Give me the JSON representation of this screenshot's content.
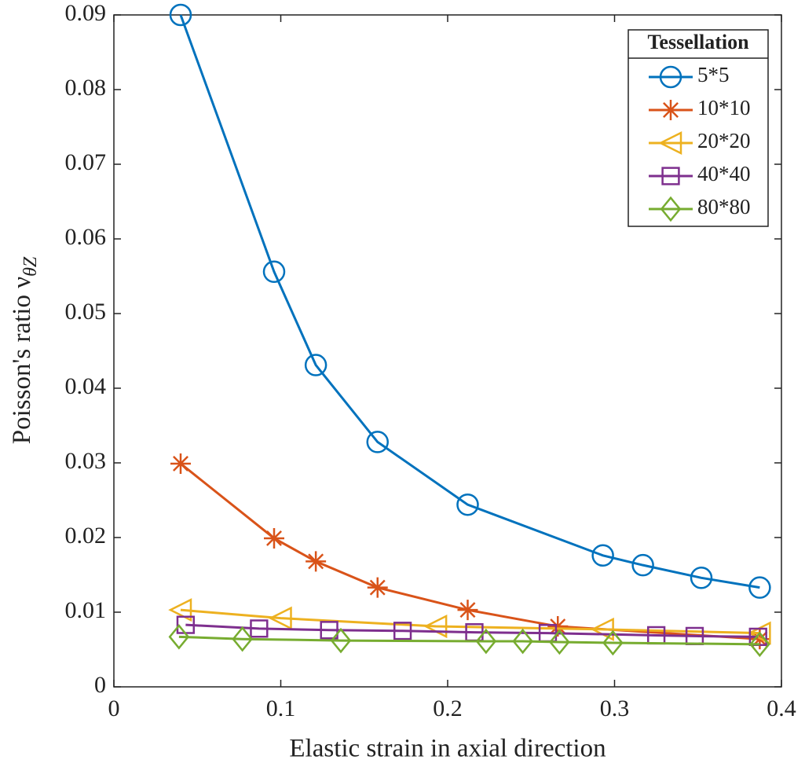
{
  "chart_data": {
    "type": "line",
    "xlabel": "Elastic strain in axial direction",
    "ylabel": "Poisson's ratio ν",
    "ylabel_subscript": "θZ",
    "legend_title": "Tessellation",
    "legend": "upper right",
    "xlim": [
      0,
      0.4
    ],
    "xticks": [
      0,
      0.1,
      0.2,
      0.3,
      0.4
    ],
    "ylim": [
      0,
      0.09
    ],
    "yticks": [
      0,
      0.01,
      0.02,
      0.03,
      0.04,
      0.05,
      0.06,
      0.07,
      0.08,
      0.09
    ],
    "series": [
      {
        "name": "5*5",
        "color": "#0072BD",
        "marker": "circle",
        "x": [
          0.04,
          0.096,
          0.121,
          0.158,
          0.212,
          0.293,
          0.317,
          0.352,
          0.387
        ],
        "values": [
          0.09,
          0.0556,
          0.0431,
          0.0328,
          0.0244,
          0.0176,
          0.0163,
          0.0146,
          0.0133
        ]
      },
      {
        "name": "10*10",
        "color": "#D95319",
        "marker": "asterisk",
        "x": [
          0.04,
          0.096,
          0.121,
          0.158,
          0.212,
          0.266,
          0.387
        ],
        "values": [
          0.0299,
          0.0199,
          0.0168,
          0.0133,
          0.0103,
          0.0081,
          0.0064
        ]
      },
      {
        "name": "20*20",
        "color": "#EDB120",
        "marker": "triangle-left",
        "x": [
          0.04,
          0.1,
          0.193,
          0.293,
          0.387
        ],
        "values": [
          0.0103,
          0.0092,
          0.0081,
          0.0077,
          0.0072
        ]
      },
      {
        "name": "40*40",
        "color": "#7E2F8E",
        "marker": "square",
        "x": [
          0.043,
          0.087,
          0.129,
          0.173,
          0.216,
          0.26,
          0.325,
          0.348,
          0.386
        ],
        "values": [
          0.0083,
          0.0078,
          0.0076,
          0.0075,
          0.0073,
          0.0072,
          0.0069,
          0.0068,
          0.0067
        ]
      },
      {
        "name": "80*80",
        "color": "#77AC30",
        "marker": "diamond",
        "x": [
          0.039,
          0.077,
          0.136,
          0.223,
          0.245,
          0.267,
          0.299,
          0.387
        ],
        "values": [
          0.0067,
          0.0064,
          0.0062,
          0.0061,
          0.0061,
          0.006,
          0.0059,
          0.0057
        ]
      }
    ]
  }
}
